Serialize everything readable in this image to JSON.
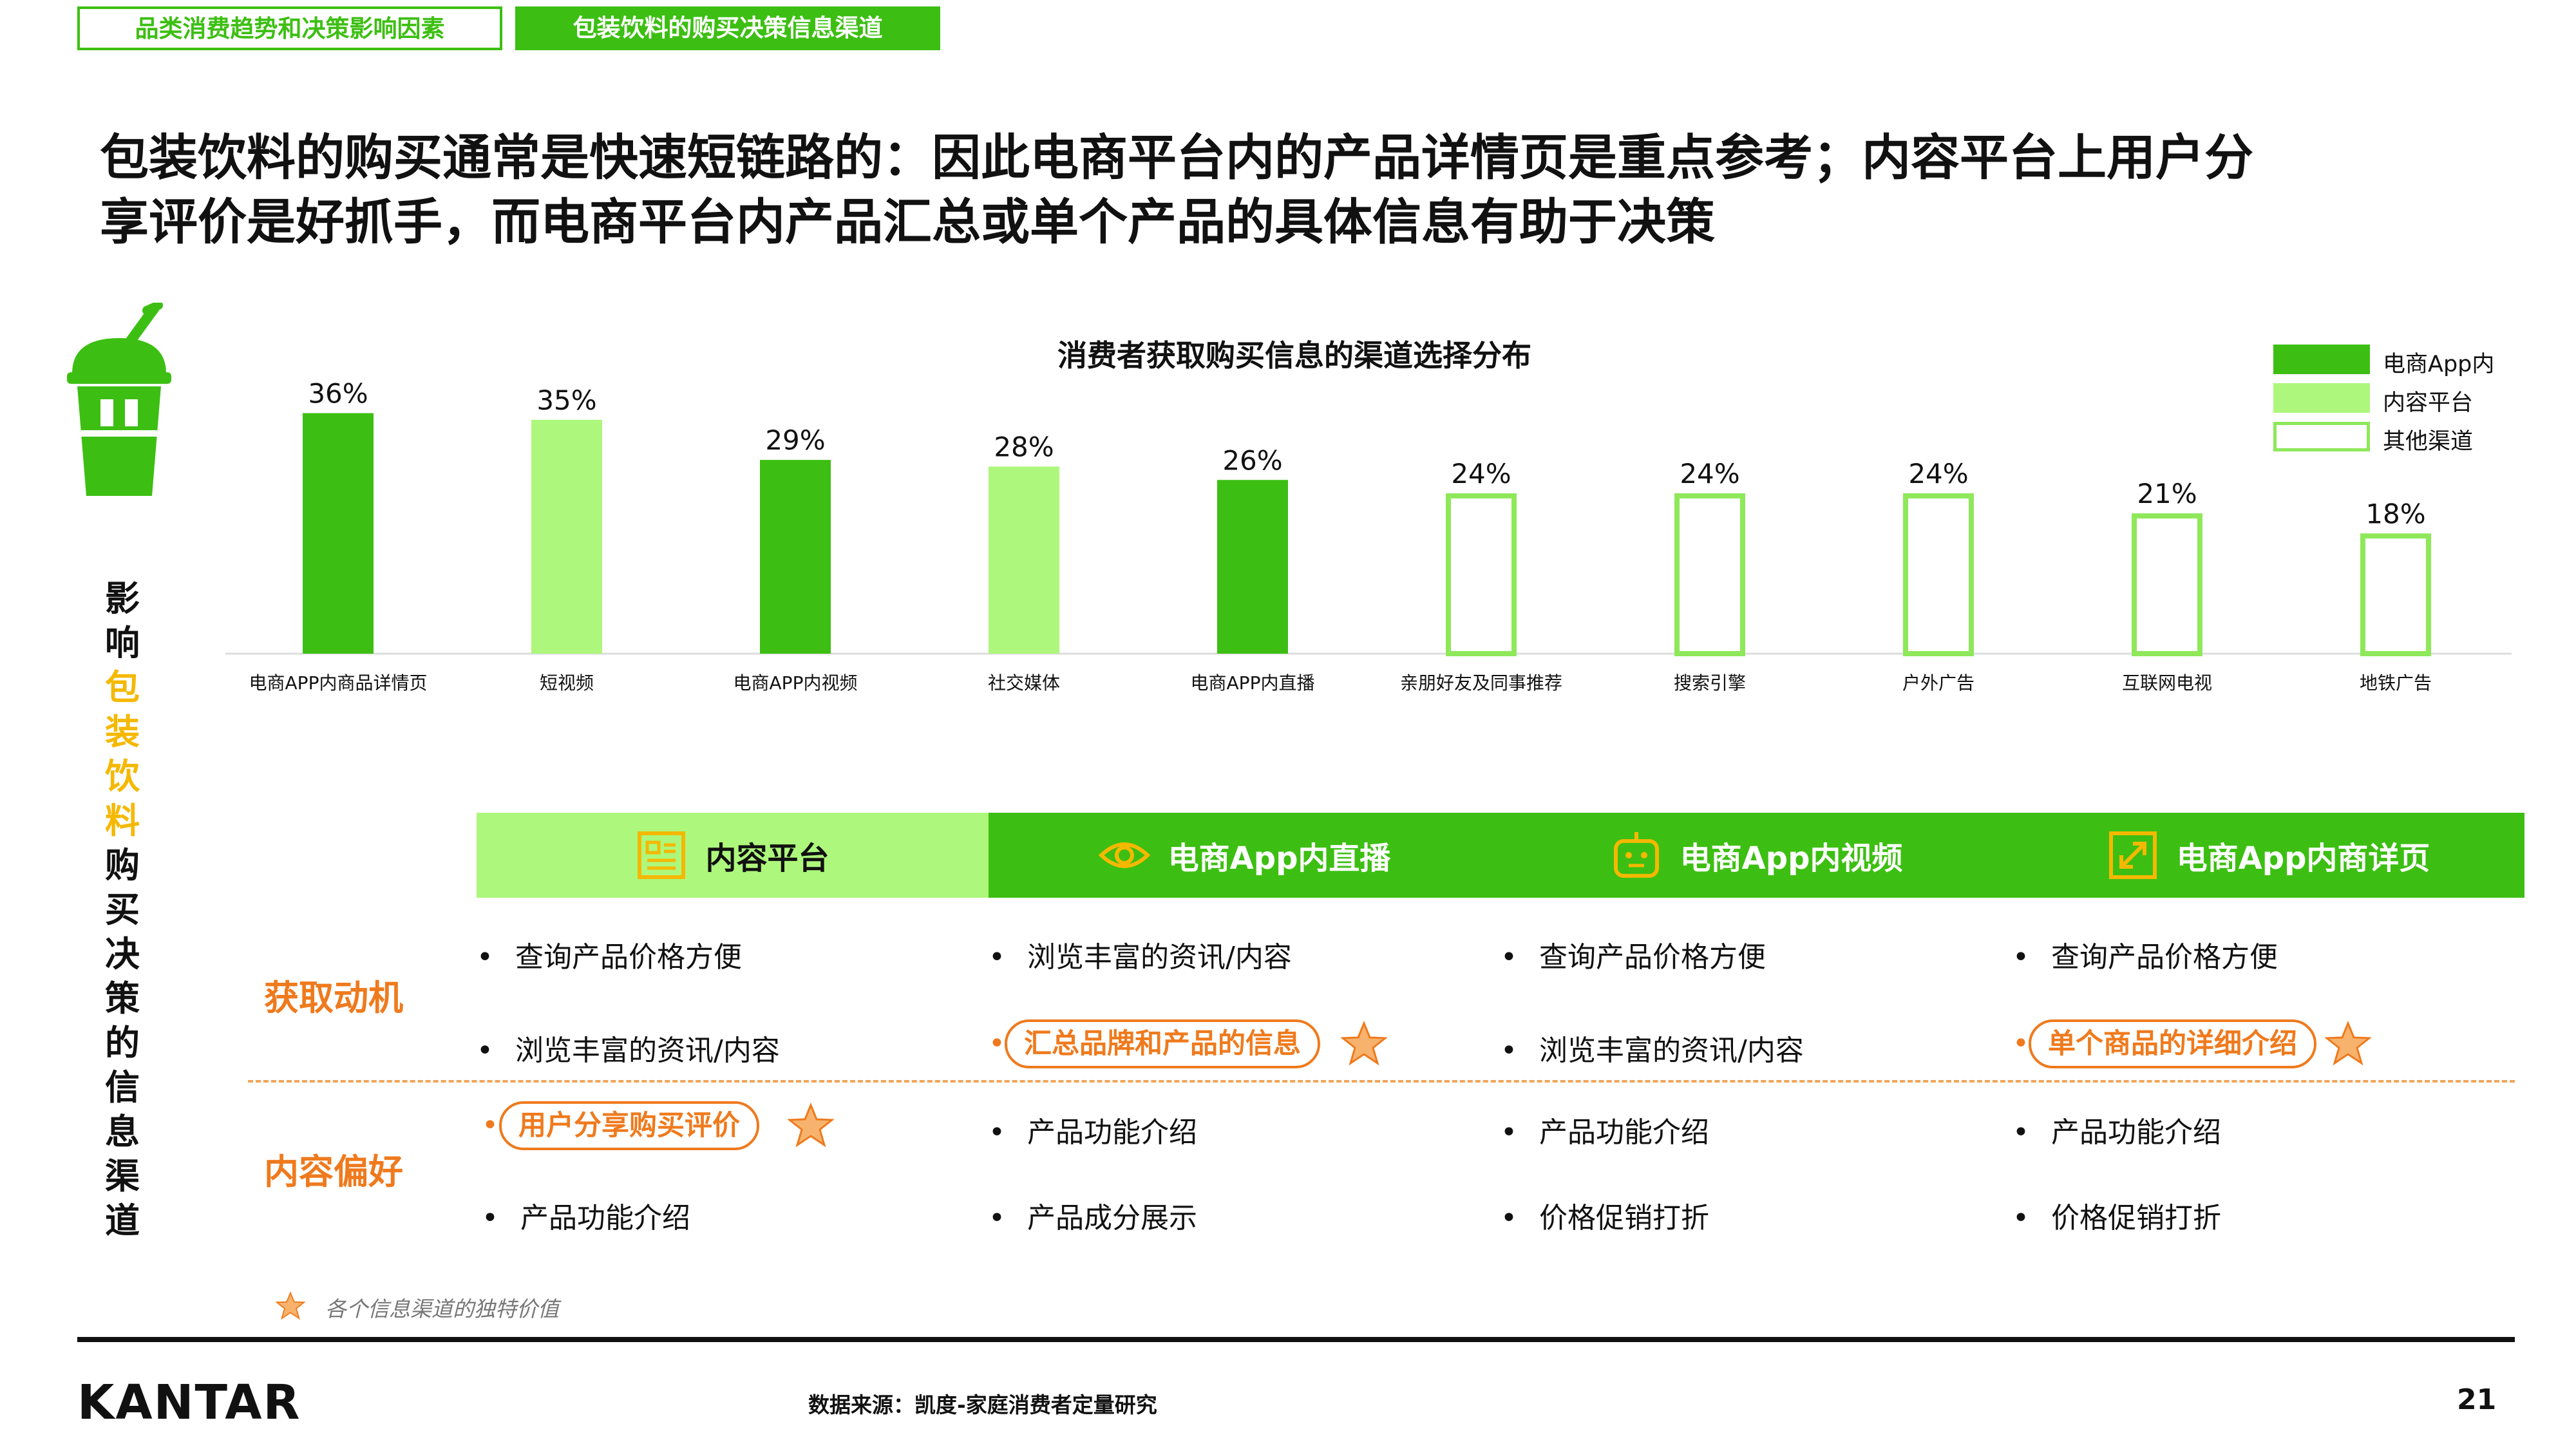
{
  "tabs": [
    "品类消费趋势和决策影响因素",
    "包装饮料的购买决策信息渠道"
  ],
  "headline": [
    "包装饮料的购买通常是快速短链路的：因此电商平台内的产品详情页是重点参考；内容平台上用户分",
    "享评价是好抓手，而电商平台内产品汇总或单个产品的具体信息有助于决策"
  ],
  "side_title": [
    "影",
    "响",
    "包",
    "装",
    "饮",
    "料",
    "购",
    "买",
    "决",
    "策",
    "的",
    "信",
    "息",
    "渠",
    "道"
  ],
  "side_title_highlight_colors": {
    "normal": "#111111",
    "highlight": "#f5b800"
  },
  "colors": {
    "accent_green": "#3cbf12",
    "light_green": "#adf77c",
    "other_outline": "#8ee85a",
    "orange": "#ef7a1d",
    "star_fill": "#f7b36e"
  },
  "chart_data": {
    "type": "bar",
    "title": "消费者获取购买信息的渠道选择分布",
    "categories": [
      "电商APP内商品详情页",
      "短视频",
      "电商APP内视频",
      "社交媒体",
      "电商APP内直播",
      "亲朋好友及同事推荐",
      "搜索引擎",
      "户外广告",
      "互联网电视",
      "地铁广告"
    ],
    "values": [
      36,
      35,
      29,
      28,
      26,
      24,
      24,
      24,
      21,
      18
    ],
    "value_labels": [
      "36%",
      "35%",
      "29%",
      "28%",
      "26%",
      "24%",
      "24%",
      "24%",
      "21%",
      "18%"
    ],
    "series_group": [
      "电商App内",
      "内容平台",
      "电商App内",
      "内容平台",
      "电商App内",
      "其他渠道",
      "其他渠道",
      "其他渠道",
      "其他渠道",
      "其他渠道"
    ],
    "legend": [
      "电商App内",
      "内容平台",
      "其他渠道"
    ],
    "legend_position": "top-right",
    "ylim": [
      0,
      40
    ],
    "grid": false
  },
  "channels": [
    {
      "name": "内容平台",
      "icon": "document-icon"
    },
    {
      "name": "电商App内直播",
      "icon": "eye-icon"
    },
    {
      "name": "电商App内视频",
      "icon": "robot-icon"
    },
    {
      "name": "电商App内商详页",
      "icon": "expand-icon"
    }
  ],
  "row_labels": [
    "获取动机",
    "内容偏好"
  ],
  "items": {
    "col1": [
      "查询产品价格方便",
      "浏览丰富的资讯/内容",
      "用户分享购买评价",
      "产品功能介绍"
    ],
    "col2": [
      "浏览丰富的资讯/内容",
      "汇总品牌和产品的信息",
      "产品功能介绍",
      "产品成分展示"
    ],
    "col3": [
      "查询产品价格方便",
      "浏览丰富的资讯/内容",
      "产品功能介绍",
      "价格促销打折"
    ],
    "col4": [
      "查询产品价格方便",
      "单个商品的详细介绍",
      "产品功能介绍",
      "价格促销打折"
    ]
  },
  "bullet": "•",
  "footnote": "各个信息渠道的独特价值",
  "logo": "KANTAR",
  "source": "数据来源：凯度-家庭消费者定量研究",
  "page_number": "21"
}
